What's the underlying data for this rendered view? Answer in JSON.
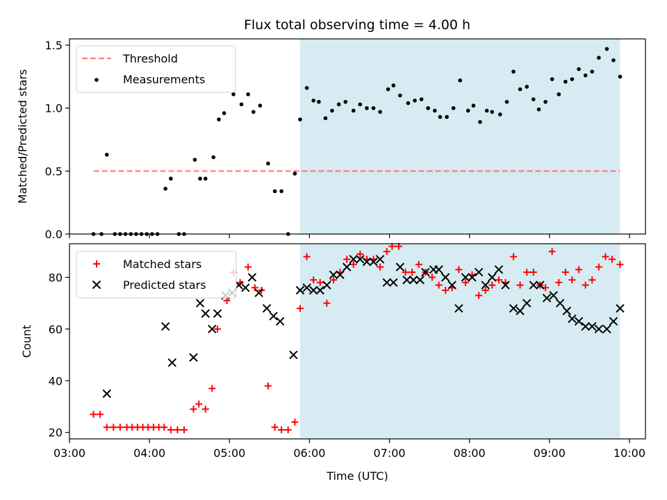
{
  "chart_data": [
    {
      "type": "scatter",
      "title": "Flux total observing time = 4.00 h",
      "xlabel": "",
      "ylabel": "Matched/Predicted stars",
      "ylim": [
        0,
        1.55
      ],
      "yticks": [
        0.0,
        0.5,
        1.0,
        1.5
      ],
      "ytick_labels": [
        "0.0",
        "0.5",
        "1.0",
        "1.5"
      ],
      "xlim_hours": [
        3.0,
        10.2
      ],
      "xticks_hours": [
        3,
        4,
        5,
        6,
        7,
        8,
        9,
        10
      ],
      "shaded_span_hours": [
        5.883,
        9.883
      ],
      "shaded_color": "#add8e6",
      "legend_position": "upper-left",
      "threshold": {
        "name": "Threshold",
        "value": 0.5,
        "x_start": 3.3,
        "x_end": 9.883,
        "color": "#ff7f7f"
      },
      "series": [
        {
          "name": "Measurements",
          "color": "#000000",
          "x": [
            3.3,
            3.4,
            3.467,
            3.567,
            3.633,
            3.7,
            3.767,
            3.833,
            3.9,
            3.967,
            4.033,
            4.1,
            4.2,
            4.267,
            4.367,
            4.433,
            4.567,
            4.633,
            4.7,
            4.8,
            4.867,
            4.933,
            5.05,
            5.15,
            5.233,
            5.3,
            5.383,
            5.483,
            5.567,
            5.65,
            5.733,
            5.817,
            5.883,
            5.967,
            6.05,
            6.117,
            6.2,
            6.283,
            6.367,
            6.45,
            6.55,
            6.633,
            6.717,
            6.8,
            6.883,
            6.983,
            7.05,
            7.133,
            7.233,
            7.317,
            7.4,
            7.483,
            7.567,
            7.633,
            7.717,
            7.8,
            7.883,
            7.983,
            8.05,
            8.133,
            8.217,
            8.283,
            8.383,
            8.467,
            8.55,
            8.633,
            8.717,
            8.8,
            8.867,
            8.95,
            9.033,
            9.117,
            9.2,
            9.283,
            9.367,
            9.45,
            9.533,
            9.617,
            9.717,
            9.8,
            9.883
          ],
          "y": [
            0.0,
            0.0,
            0.63,
            0.0,
            0.0,
            0.0,
            0.0,
            0.0,
            0.0,
            0.0,
            0.0,
            0.0,
            0.36,
            0.44,
            0.0,
            0.0,
            0.59,
            0.44,
            0.44,
            0.61,
            0.91,
            0.96,
            1.11,
            1.03,
            1.11,
            0.97,
            1.02,
            0.56,
            0.34,
            0.34,
            0.0,
            0.48,
            0.91,
            1.16,
            1.06,
            1.05,
            0.92,
            0.98,
            1.03,
            1.05,
            0.98,
            1.03,
            1.0,
            1.0,
            0.97,
            1.15,
            1.18,
            1.1,
            1.04,
            1.06,
            1.07,
            1.0,
            0.98,
            0.93,
            0.93,
            1.0,
            1.22,
            0.98,
            1.02,
            0.89,
            0.98,
            0.97,
            0.95,
            1.05,
            1.29,
            1.15,
            1.17,
            1.07,
            0.99,
            1.05,
            1.23,
            1.11,
            1.21,
            1.23,
            1.31,
            1.26,
            1.29,
            1.4,
            1.47,
            1.38,
            1.25
          ]
        }
      ]
    },
    {
      "type": "scatter",
      "xlabel": "Time (UTC)",
      "ylabel": "Count",
      "ylim": [
        17.5,
        93
      ],
      "yticks": [
        20,
        40,
        60,
        80
      ],
      "ytick_labels": [
        "20",
        "40",
        "60",
        "80"
      ],
      "xlim_hours": [
        3.0,
        10.2
      ],
      "xticks_hours": [
        3,
        4,
        5,
        6,
        7,
        8,
        9,
        10
      ],
      "xtick_labels": [
        "03:00",
        "04:00",
        "05:00",
        "06:00",
        "07:00",
        "08:00",
        "09:00",
        "10:00"
      ],
      "shaded_span_hours": [
        5.883,
        9.883
      ],
      "shaded_color": "#add8e6",
      "legend_position": "upper-left",
      "series": [
        {
          "name": "Matched stars",
          "marker": "plus",
          "color": "#ff0000",
          "x": [
            3.3,
            3.383,
            3.467,
            3.55,
            3.633,
            3.717,
            3.783,
            3.85,
            3.917,
            3.983,
            4.05,
            4.117,
            4.183,
            4.267,
            4.35,
            4.433,
            4.55,
            4.617,
            4.7,
            4.783,
            4.85,
            4.967,
            5.05,
            5.133,
            5.233,
            5.317,
            5.4,
            5.483,
            5.567,
            5.65,
            5.733,
            5.817,
            5.883,
            5.967,
            6.05,
            6.133,
            6.217,
            6.3,
            6.383,
            6.467,
            6.55,
            6.633,
            6.717,
            6.8,
            6.883,
            6.967,
            7.033,
            7.117,
            7.2,
            7.283,
            7.367,
            7.45,
            7.533,
            7.617,
            7.7,
            7.783,
            7.867,
            7.95,
            8.033,
            8.117,
            8.2,
            8.283,
            8.367,
            8.45,
            8.55,
            8.633,
            8.717,
            8.8,
            8.883,
            8.95,
            9.033,
            9.117,
            9.2,
            9.283,
            9.367,
            9.45,
            9.533,
            9.617,
            9.7,
            9.783,
            9.883
          ],
          "y": [
            27,
            27,
            22,
            22,
            22,
            22,
            22,
            22,
            22,
            22,
            22,
            22,
            22,
            21,
            21,
            21,
            29,
            31,
            29,
            37,
            60,
            71,
            82,
            78,
            84,
            76,
            75,
            38,
            22,
            21,
            21,
            24,
            68,
            88,
            79,
            78,
            70,
            79,
            82,
            87,
            85,
            89,
            87,
            87,
            84,
            90,
            92,
            92,
            82,
            82,
            85,
            82,
            80,
            77,
            75,
            76,
            83,
            78,
            81,
            73,
            75,
            77,
            79,
            78,
            88,
            77,
            82,
            82,
            77,
            76,
            90,
            78,
            82,
            79,
            83,
            77,
            79,
            84,
            88,
            87,
            85
          ]
        },
        {
          "name": "Predicted stars",
          "marker": "x",
          "color": "#000000",
          "x": [
            3.467,
            4.2,
            4.283,
            4.55,
            4.633,
            4.7,
            4.783,
            4.85,
            4.95,
            5.033,
            5.117,
            5.2,
            5.283,
            5.367,
            5.467,
            5.55,
            5.633,
            5.8,
            5.883,
            5.967,
            6.05,
            6.133,
            6.217,
            6.3,
            6.383,
            6.467,
            6.55,
            6.633,
            6.717,
            6.8,
            6.883,
            6.967,
            7.05,
            7.133,
            7.217,
            7.3,
            7.383,
            7.45,
            7.55,
            7.617,
            7.7,
            7.783,
            7.867,
            7.95,
            8.033,
            8.117,
            8.2,
            8.283,
            8.367,
            8.45,
            8.55,
            8.633,
            8.717,
            8.8,
            8.883,
            8.967,
            9.05,
            9.133,
            9.217,
            9.283,
            9.367,
            9.45,
            9.533,
            9.617,
            9.717,
            9.8,
            9.883
          ],
          "y": [
            35,
            61,
            47,
            49,
            70,
            66,
            60,
            66,
            73,
            74,
            77,
            76,
            80,
            74,
            68,
            65,
            63,
            50,
            75,
            76,
            75,
            75,
            77,
            81,
            81,
            84,
            87,
            87,
            86,
            86,
            87,
            78,
            78,
            84,
            79,
            79,
            79,
            82,
            83,
            83,
            80,
            77,
            68,
            80,
            80,
            82,
            77,
            80,
            83,
            77,
            68,
            67,
            70,
            77,
            77,
            72,
            73,
            70,
            67,
            64,
            63,
            61,
            61,
            60,
            60,
            63,
            68
          ]
        }
      ]
    }
  ]
}
